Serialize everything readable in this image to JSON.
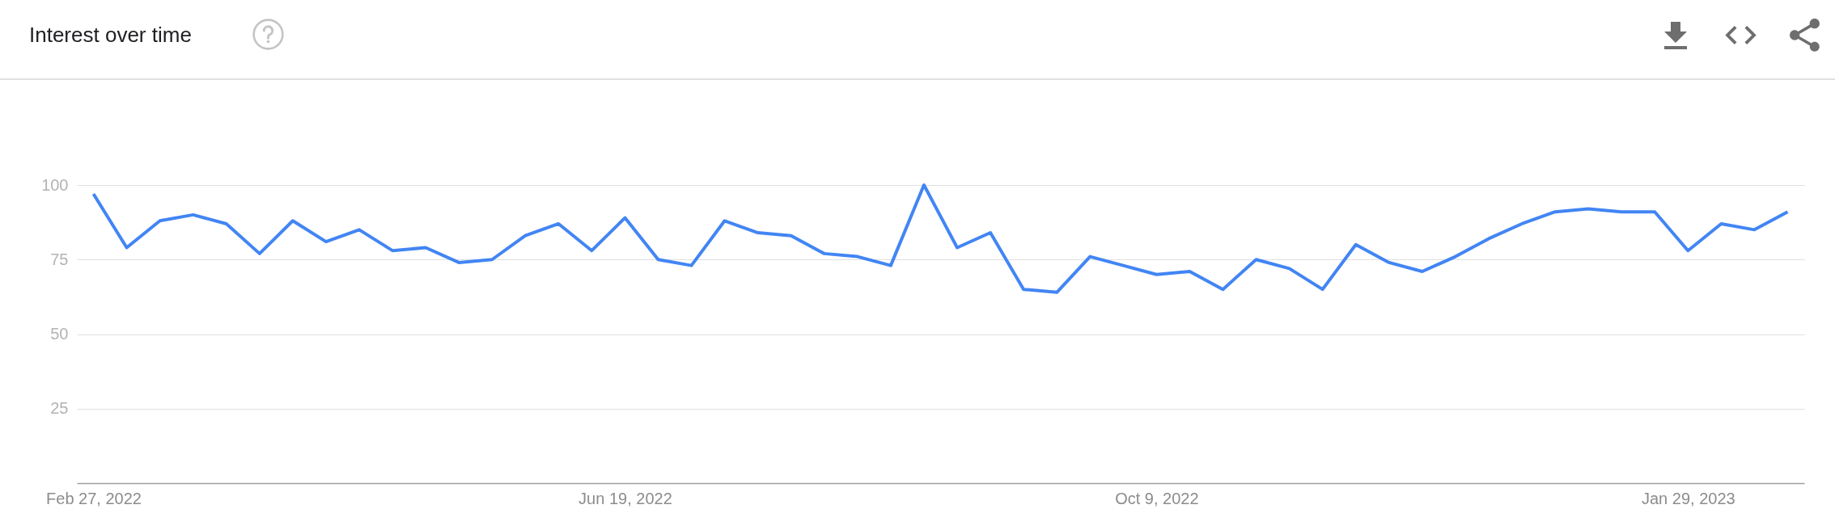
{
  "chart_data": {
    "type": "line",
    "title": "Interest over time",
    "x": [
      "2022-02-27",
      "2022-03-06",
      "2022-03-13",
      "2022-03-20",
      "2022-03-27",
      "2022-04-03",
      "2022-04-10",
      "2022-04-17",
      "2022-04-24",
      "2022-05-01",
      "2022-05-08",
      "2022-05-15",
      "2022-05-22",
      "2022-05-29",
      "2022-06-05",
      "2022-06-12",
      "2022-06-19",
      "2022-06-26",
      "2022-07-03",
      "2022-07-10",
      "2022-07-17",
      "2022-07-24",
      "2022-07-31",
      "2022-08-07",
      "2022-08-14",
      "2022-08-21",
      "2022-08-28",
      "2022-09-04",
      "2022-09-11",
      "2022-09-18",
      "2022-09-25",
      "2022-10-02",
      "2022-10-09",
      "2022-10-16",
      "2022-10-23",
      "2022-10-30",
      "2022-11-06",
      "2022-11-13",
      "2022-11-20",
      "2022-11-27",
      "2022-12-04",
      "2022-12-11",
      "2022-12-18",
      "2022-12-25",
      "2023-01-01",
      "2023-01-08",
      "2023-01-15",
      "2023-01-22",
      "2023-01-29",
      "2023-02-05",
      "2023-02-12",
      "2023-02-19"
    ],
    "series": [
      {
        "color": "#4285f4",
        "values": [
          97,
          79,
          88,
          90,
          87,
          77,
          88,
          81,
          85,
          78,
          79,
          74,
          75,
          83,
          87,
          78,
          89,
          75,
          73,
          88,
          84,
          83,
          77,
          76,
          73,
          100,
          79,
          84,
          65,
          64,
          76,
          73,
          70,
          71,
          65,
          75,
          72,
          65,
          80,
          74,
          71,
          76,
          82,
          87,
          91,
          92,
          91,
          91,
          78,
          87,
          85,
          91
        ]
      }
    ],
    "xlim": [
      "2022-02-23T12:00",
      "2023-02-22T12:00"
    ],
    "xticks": [
      {
        "value": "2022-02-27",
        "label": "Feb 27, 2022"
      },
      {
        "value": "2022-06-19",
        "label": "Jun 19, 2022"
      },
      {
        "value": "2022-10-09",
        "label": "Oct 9, 2022"
      },
      {
        "value": "2023-01-29",
        "label": "Jan 29, 2023"
      }
    ],
    "ylim": [
      0,
      100
    ],
    "yticks": [
      25,
      50,
      75,
      100
    ],
    "grid": "y"
  }
}
